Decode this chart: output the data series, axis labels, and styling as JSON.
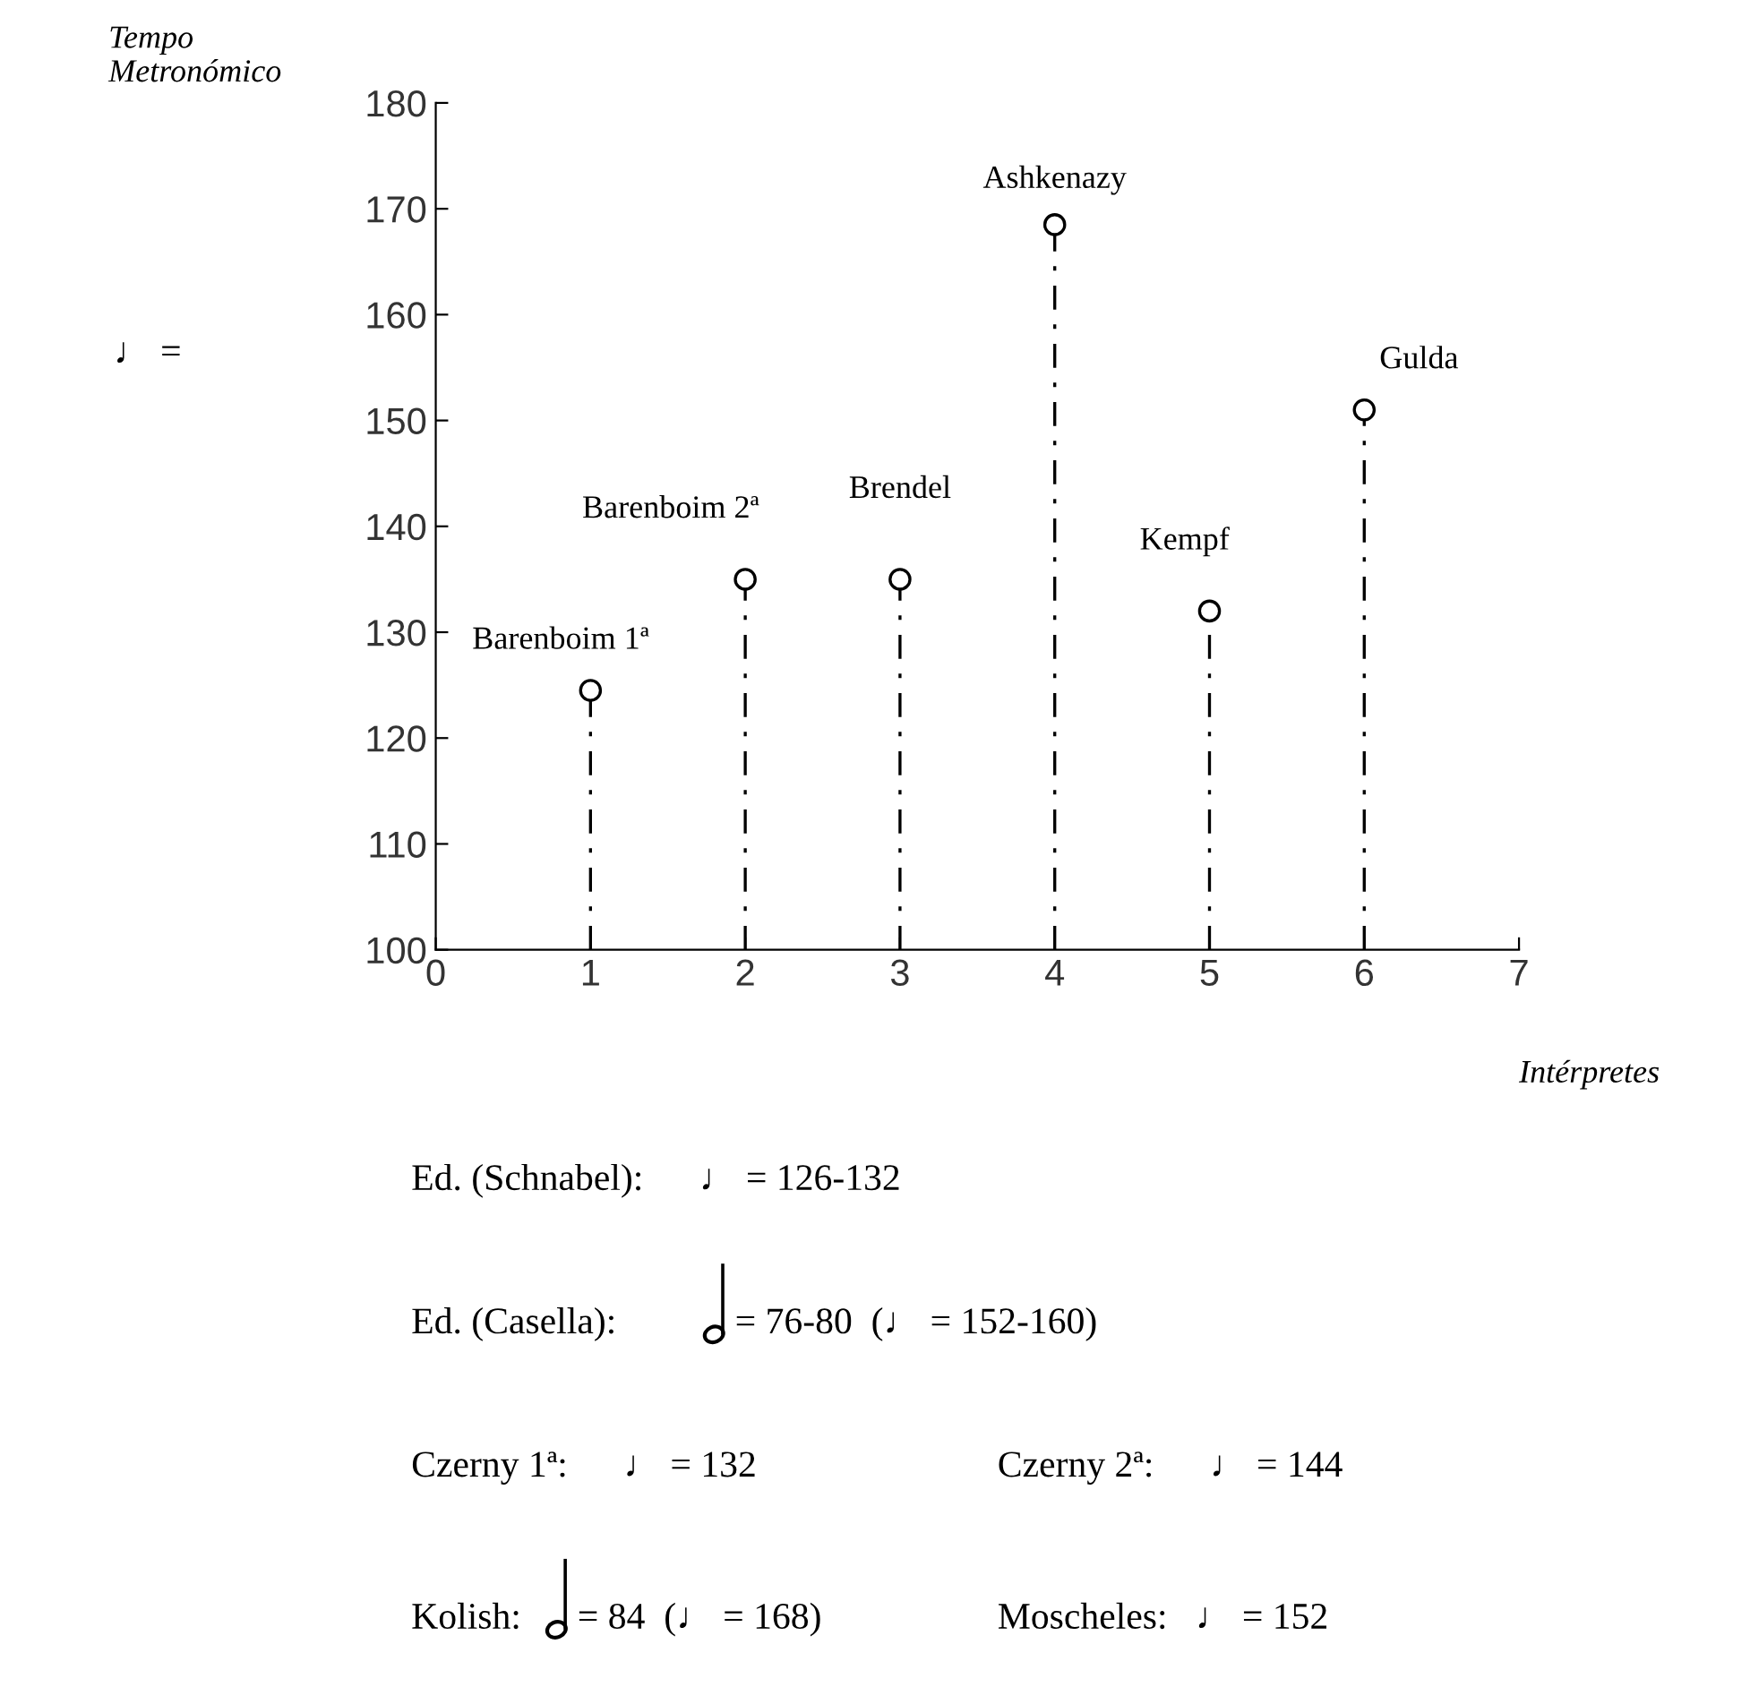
{
  "chart_data": {
    "type": "lollipop",
    "x": [
      1,
      2,
      3,
      4,
      5,
      6
    ],
    "values": [
      124.5,
      135,
      135,
      168.5,
      132,
      151
    ],
    "color": "#000000",
    "marker": "circle",
    "xlim": [
      0,
      7
    ],
    "xticks": [
      0,
      1,
      2,
      3,
      4,
      5,
      6,
      7
    ],
    "ylim": [
      100,
      180
    ],
    "yticks": [
      100,
      110,
      120,
      130,
      140,
      150,
      160,
      170,
      180
    ],
    "ylabel": "Tempo\nMetronómico",
    "xlabel": "Intérpretes",
    "annotations": [
      {
        "text": "Barenboim 1ª",
        "x": 1,
        "y": 124.5
      },
      {
        "text": "Barenboim 2ª",
        "x": 2,
        "y": 135
      },
      {
        "text": "Brendel",
        "x": 3,
        "y": 135
      },
      {
        "text": "Ashkenazy",
        "x": 4,
        "y": 168.5
      },
      {
        "text": "Kempf",
        "x": 5,
        "y": 132
      },
      {
        "text": "Gulda",
        "x": 6,
        "y": 151
      },
      "♩ =",
      "Ed. (Schnabel):      ♩ = 126-132",
      "Ed. (Casella):",
      "= 76-80  (♩ = 152-160)",
      "Czerny 1ª:      ♩ = 132",
      "Czerny 2ª:      ♩ = 144",
      "Kolish:",
      "= 84  (♩ = 168)",
      "Moscheles:   ♩ = 152"
    ]
  }
}
